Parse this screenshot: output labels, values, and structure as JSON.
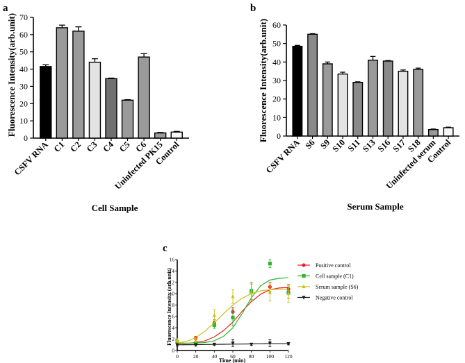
{
  "chart_data": [
    {
      "panel": "a",
      "type": "bar",
      "ylabel": "Fluorescence Intensity(arb.unit)",
      "xlabel": "Cell Sample",
      "ylim": [
        0,
        70
      ],
      "yticks": [
        0,
        10,
        20,
        30,
        40,
        50,
        60,
        70
      ],
      "categories": [
        "CSFV RNA",
        "C1",
        "C2",
        "C3",
        "C4",
        "C5",
        "C6",
        "Uninfected PK15",
        "Control"
      ],
      "values": [
        41.5,
        64,
        62,
        44,
        34.5,
        22,
        47,
        3,
        3.5
      ],
      "errors": [
        1,
        1.5,
        2.5,
        2,
        0.3,
        0.3,
        2,
        0.3,
        0.4
      ],
      "colors": [
        "#000000",
        "#9a9a9a",
        "#9a9a9a",
        "#e3e3e3",
        "#707070",
        "#9a9a9a",
        "#9a9a9a",
        "#9a9a9a",
        "#f7f7f7"
      ]
    },
    {
      "panel": "b",
      "type": "bar",
      "ylabel": "Fluorescence Intensity(arb.unit)",
      "xlabel": "Serum Sample",
      "ylim": [
        0,
        60
      ],
      "yticks": [
        0,
        10,
        20,
        30,
        40,
        50,
        60
      ],
      "categories": [
        "CSFV RNA",
        "S6",
        "S9",
        "S10",
        "S11",
        "S13",
        "S16",
        "S17",
        "S18",
        "Uninfected serum",
        "Control"
      ],
      "values": [
        48.5,
        55,
        39,
        33.5,
        29,
        41,
        40.5,
        35,
        36,
        3.5,
        4.5
      ],
      "errors": [
        0.5,
        0.3,
        1,
        1,
        0.3,
        2,
        0.3,
        0.7,
        0.7,
        0.3,
        0.3
      ],
      "colors": [
        "#000000",
        "#8a8a8a",
        "#9a9a9a",
        "#e3e3e3",
        "#8a8a8a",
        "#9a9a9a",
        "#8a8a8a",
        "#e3e3e3",
        "#9a9a9a",
        "#9a9a9a",
        "#f7f7f7"
      ]
    },
    {
      "panel": "c",
      "type": "line",
      "ylabel": "Fluorescence Intensity (arb.unit)",
      "xlabel": "Time (min)",
      "xlim": [
        0,
        120
      ],
      "ylim": [
        0,
        16
      ],
      "xticks": [
        0,
        20,
        40,
        60,
        80,
        100,
        120
      ],
      "yticks": [
        0,
        2,
        4,
        6,
        8,
        10,
        12,
        14,
        16
      ],
      "legend_position": "right",
      "series": [
        {
          "name": "Positive control",
          "color": "#e8241f",
          "marker": "circle",
          "x": [
            0,
            20,
            40,
            60,
            80,
            100,
            120
          ],
          "y": [
            1.3,
            2.2,
            4.8,
            6.8,
            10.2,
            11.2,
            10.8
          ],
          "err": [
            0.3,
            0.3,
            0.6,
            0.8,
            1.5,
            0.8,
            0.8
          ],
          "fit": [
            1.2,
            1.25,
            1.4,
            1.7,
            2.4,
            3.5,
            5.0,
            6.9,
            8.6,
            9.9,
            10.7,
            11.0,
            11.1
          ]
        },
        {
          "name": "Cell sample (C1)",
          "color": "#2cb52c",
          "marker": "square",
          "x": [
            0,
            20,
            40,
            60,
            80,
            100,
            120
          ],
          "y": [
            1.5,
            1.3,
            4.5,
            5.8,
            10.5,
            15.3,
            10.2
          ],
          "err": [
            0.3,
            0.3,
            0.6,
            1.5,
            1.5,
            0.7,
            1.0
          ],
          "fit": [
            1.3,
            1.3,
            1.32,
            1.4,
            1.7,
            2.5,
            4.0,
            6.5,
            9.3,
            11.4,
            12.4,
            12.7,
            12.8
          ]
        },
        {
          "name": "Serum sample (S6)",
          "color": "#c9c21a",
          "marker": "triangle-up",
          "x": [
            0,
            20,
            40,
            60,
            80,
            100,
            120
          ],
          "y": [
            1.8,
            1.8,
            6.2,
            9.5,
            10.2,
            10.2,
            10.0
          ],
          "err": [
            0.3,
            0.3,
            1.0,
            1.2,
            1.5,
            1.5,
            1.5
          ],
          "fit": [
            1.3,
            1.6,
            2.3,
            3.4,
            4.9,
            6.5,
            8.0,
            9.2,
            10.0,
            10.5,
            10.7,
            10.8,
            10.8
          ]
        },
        {
          "name": "Negative control",
          "color": "#1a1a1a",
          "marker": "triangle-down",
          "x": [
            0,
            20,
            40,
            60,
            80,
            100,
            120
          ],
          "y": [
            1.0,
            1.0,
            1.1,
            1.3,
            1.1,
            1.3,
            1.2
          ],
          "err": [
            0.2,
            0.2,
            0.2,
            0.6,
            0.2,
            0.6,
            0.2
          ],
          "fit": [
            1.0,
            1.02,
            1.04,
            1.06,
            1.08,
            1.1,
            1.12,
            1.14,
            1.16,
            1.18,
            1.2,
            1.2,
            1.2
          ]
        }
      ]
    }
  ]
}
